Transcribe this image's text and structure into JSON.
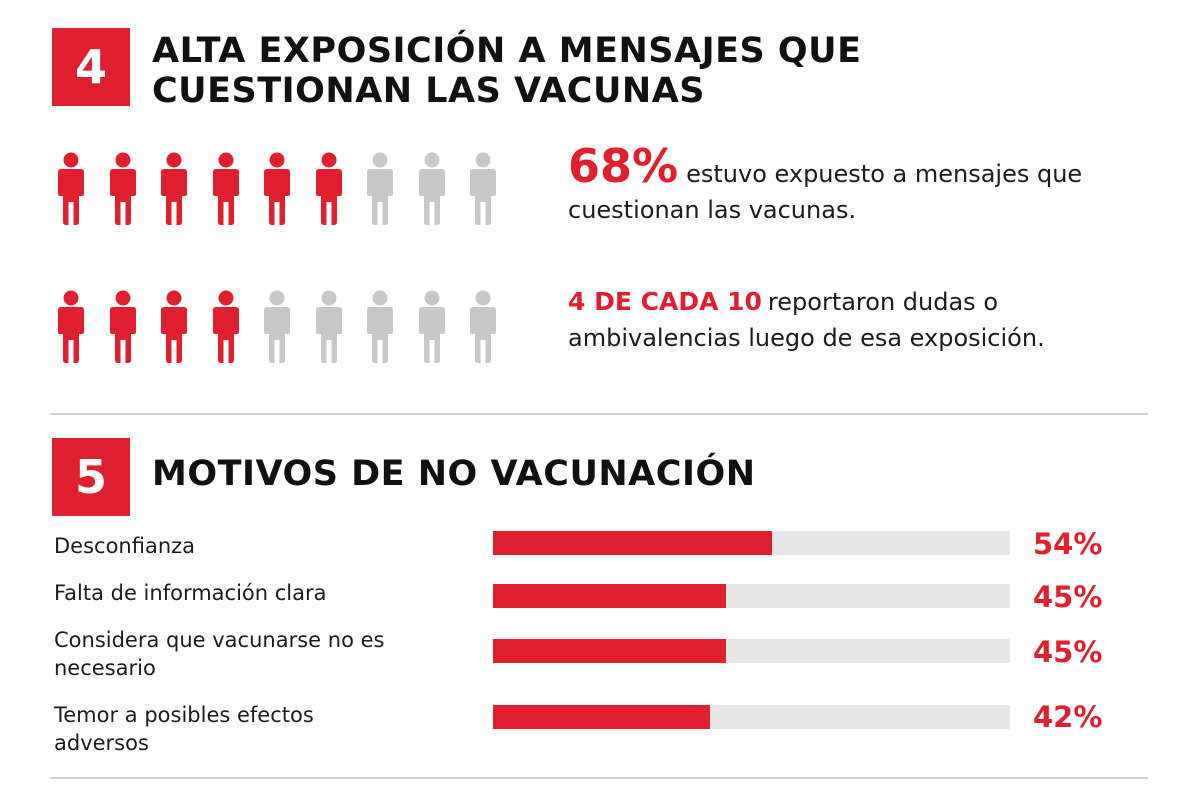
{
  "section4": {
    "number": "4",
    "title_line1": "ALTA EXPOSICIÓN A MENSAJES QUE",
    "title_line2": "CUESTIONAN LAS VACUNAS",
    "stat1": {
      "value": "68%",
      "text": "estuvo expuesto a mensajes que cuestionan las vacunas.",
      "icons_filled": 6,
      "icons_total": 9
    },
    "stat2": {
      "value": "4 DE CADA 10",
      "text": "reportaron dudas o ambivalencias luego de esa exposición.",
      "icons_filled": 4,
      "icons_total": 9
    },
    "colors": {
      "accent": "#e0202e",
      "inactive": "#c8c8c8"
    }
  },
  "section5": {
    "number": "5",
    "title": "MOTIVOS DE NO VACUNACIÓN"
  },
  "chart_data": {
    "type": "bar",
    "orientation": "horizontal",
    "categories": [
      "Desconfianza",
      "Falta de información clara",
      "Considera que vacunarse no es necesario",
      "Temor a posibles efectos adversos"
    ],
    "values": [
      54,
      45,
      45,
      42
    ],
    "value_labels": [
      "54%",
      "45%",
      "45%",
      "42%"
    ],
    "xlim": [
      0,
      100
    ],
    "grid": false,
    "colors": {
      "bar": "#e0202e",
      "track": "#e6e6e6"
    }
  }
}
